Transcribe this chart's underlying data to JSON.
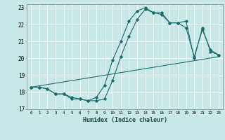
{
  "xlabel": "Humidex (Indice chaleur)",
  "bg_color": "#c8e8e8",
  "grid_color": "#ffffff",
  "line_color": "#1a6b6b",
  "xlim": [
    -0.5,
    23.5
  ],
  "ylim": [
    17,
    23.2
  ],
  "xticks": [
    0,
    1,
    2,
    3,
    4,
    5,
    6,
    7,
    8,
    9,
    10,
    11,
    12,
    13,
    14,
    15,
    16,
    17,
    18,
    19,
    20,
    21,
    22,
    23
  ],
  "yticks": [
    17,
    18,
    19,
    20,
    21,
    22,
    23
  ],
  "line1_x": [
    0,
    1,
    2,
    3,
    4,
    5,
    6,
    7,
    8,
    9,
    10,
    11,
    12,
    13,
    14,
    15,
    16,
    17,
    18,
    19,
    20,
    21,
    22,
    23
  ],
  "line1_y": [
    18.3,
    18.3,
    18.2,
    17.9,
    17.9,
    17.6,
    17.6,
    17.5,
    17.5,
    17.6,
    18.7,
    20.1,
    21.3,
    22.3,
    22.9,
    22.7,
    22.6,
    22.1,
    22.1,
    22.2,
    20.0,
    21.8,
    20.4,
    20.2
  ],
  "line2_x": [
    0,
    1,
    2,
    3,
    4,
    5,
    6,
    7,
    8,
    9,
    10,
    11,
    12,
    13,
    14,
    15,
    16,
    17,
    18,
    19,
    20,
    21,
    22,
    23
  ],
  "line2_y": [
    18.3,
    18.3,
    18.2,
    17.9,
    17.9,
    17.7,
    17.6,
    17.5,
    17.7,
    18.4,
    19.9,
    21.0,
    22.2,
    22.8,
    23.0,
    22.7,
    22.7,
    22.1,
    22.1,
    21.8,
    20.1,
    21.7,
    20.5,
    20.2
  ],
  "line3_x": [
    0,
    23
  ],
  "line3_y": [
    18.3,
    20.1
  ]
}
